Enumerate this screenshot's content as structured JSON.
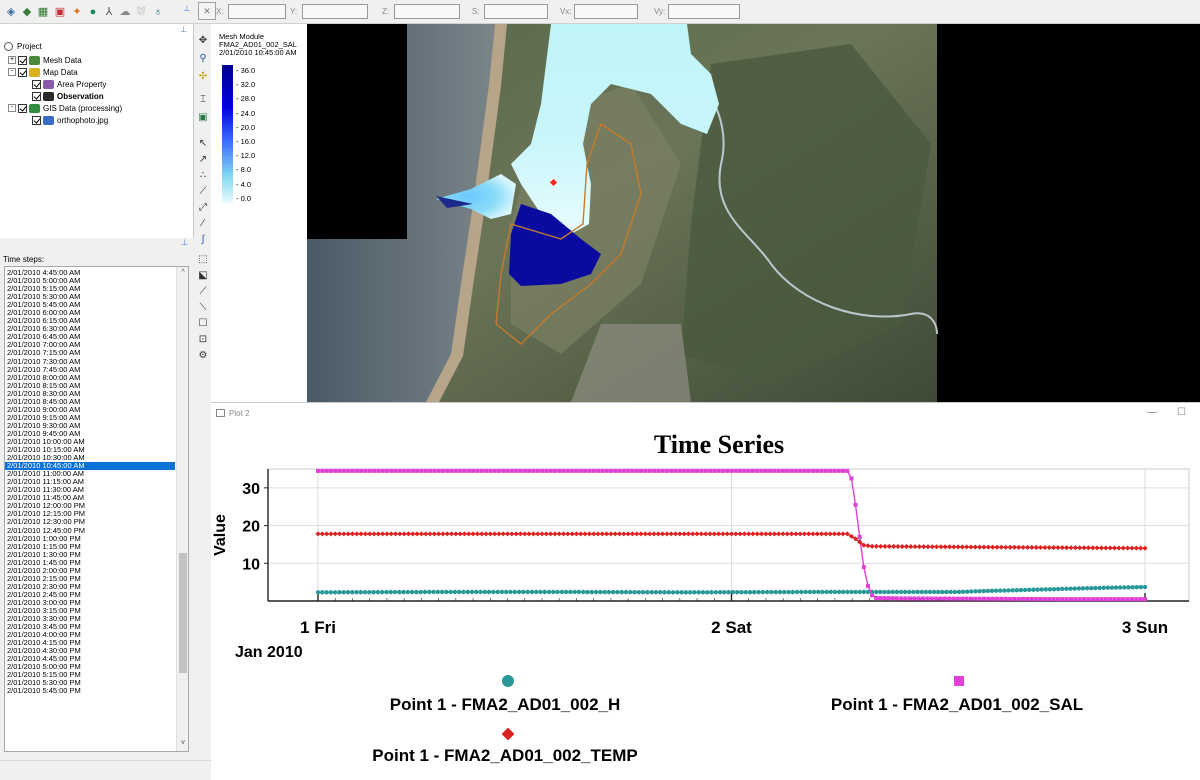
{
  "toolbar": {
    "tools": [
      "mesh-icon",
      "map-icon",
      "grid-icon",
      "raster-icon",
      "scatter-icon",
      "globe-icon",
      "network-icon",
      "cloud-icon",
      "cloud-dotted-icon",
      "gauge-icon"
    ],
    "coords": [
      {
        "label": "X:",
        "value": ""
      },
      {
        "label": "Y:",
        "value": ""
      },
      {
        "label": "Z:",
        "value": ""
      },
      {
        "label": "S:",
        "value": ""
      },
      {
        "label": "Vx:",
        "value": ""
      },
      {
        "label": "Vy:",
        "value": ""
      }
    ]
  },
  "project_tree": {
    "root": "Project",
    "items": [
      {
        "label": "Mesh Data",
        "bold": false,
        "level": 1,
        "expand": "+",
        "color": "#4a8a3a"
      },
      {
        "label": "Map Data",
        "bold": false,
        "level": 1,
        "expand": "-",
        "color": "#d8b020"
      },
      {
        "label": "Area Property",
        "bold": false,
        "level": 2,
        "expand": "",
        "color": "#8a5aa8"
      },
      {
        "label": "Observation",
        "bold": true,
        "level": 2,
        "expand": "",
        "color": "#2a2a2a"
      },
      {
        "label": "GIS Data (processing)",
        "bold": false,
        "level": 1,
        "expand": "-",
        "color": "#2f8f3f"
      },
      {
        "label": "orthophoto.jpg",
        "bold": false,
        "level": 2,
        "expand": "",
        "color": "#3a6ac8"
      }
    ]
  },
  "timesteps": {
    "label": "Time steps:",
    "selected": "2/01/2010 10:45:00 AM",
    "items": [
      "2/01/2010 4:45:00 AM",
      "2/01/2010 5:00:00 AM",
      "2/01/2010 5:15:00 AM",
      "2/01/2010 5:30:00 AM",
      "2/01/2010 5:45:00 AM",
      "2/01/2010 6:00:00 AM",
      "2/01/2010 6:15:00 AM",
      "2/01/2010 6:30:00 AM",
      "2/01/2010 6:45:00 AM",
      "2/01/2010 7:00:00 AM",
      "2/01/2010 7:15:00 AM",
      "2/01/2010 7:30:00 AM",
      "2/01/2010 7:45:00 AM",
      "2/01/2010 8:00:00 AM",
      "2/01/2010 8:15:00 AM",
      "2/01/2010 8:30:00 AM",
      "2/01/2010 8:45:00 AM",
      "2/01/2010 9:00:00 AM",
      "2/01/2010 9:15:00 AM",
      "2/01/2010 9:30:00 AM",
      "2/01/2010 9:45:00 AM",
      "2/01/2010 10:00:00 AM",
      "2/01/2010 10:15:00 AM",
      "2/01/2010 10:30:00 AM",
      "2/01/2010 10:45:00 AM",
      "2/01/2010 11:00:00 AM",
      "2/01/2010 11:15:00 AM",
      "2/01/2010 11:30:00 AM",
      "2/01/2010 11:45:00 AM",
      "2/01/2010 12:00:00 PM",
      "2/01/2010 12:15:00 PM",
      "2/01/2010 12:30:00 PM",
      "2/01/2010 12:45:00 PM",
      "2/01/2010 1:00:00 PM",
      "2/01/2010 1:15:00 PM",
      "2/01/2010 1:30:00 PM",
      "2/01/2010 1:45:00 PM",
      "2/01/2010 2:00:00 PM",
      "2/01/2010 2:15:00 PM",
      "2/01/2010 2:30:00 PM",
      "2/01/2010 2:45:00 PM",
      "2/01/2010 3:00:00 PM",
      "2/01/2010 3:15:00 PM",
      "2/01/2010 3:30:00 PM",
      "2/01/2010 3:45:00 PM",
      "2/01/2010 4:00:00 PM",
      "2/01/2010 4:15:00 PM",
      "2/01/2010 4:30:00 PM",
      "2/01/2010 4:45:00 PM",
      "2/01/2010 5:00:00 PM",
      "2/01/2010 5:15:00 PM",
      "2/01/2010 5:30:00 PM",
      "2/01/2010 5:45:00 PM"
    ]
  },
  "map": {
    "legend_title_1": "Mesh Module",
    "legend_title_2": "FMA2_AD01_002_SAL",
    "legend_title_3": "2/01/2010 10:45:00 AM",
    "legend_ticks": [
      "36.0",
      "32.0",
      "28.0",
      "24.0",
      "20.0",
      "16.0",
      "12.0",
      "8.0",
      "4.0",
      "0.0"
    ]
  },
  "plot_window": {
    "title": "Plot 2",
    "min_glyph": "—",
    "max_glyph": "☐"
  },
  "chart_data": {
    "type": "line",
    "title": "Time Series",
    "ylabel": "Value",
    "xlabel": "",
    "x_ticks": [
      "1 Fri",
      "2 Sat",
      "3 Sun"
    ],
    "x_sublabel": "Jan 2010",
    "x_range_days": [
      1,
      3
    ],
    "y_ticks": [
      10,
      20,
      30
    ],
    "ylim": [
      0,
      35
    ],
    "grid": true,
    "legend_placement": "bottom",
    "series": [
      {
        "name": "Point 1 - FMA2_AD01_002_H",
        "color": "#2a9898",
        "marker": "circle",
        "points": [
          [
            1.0,
            2.3
          ],
          [
            1.3,
            2.4
          ],
          [
            1.6,
            2.4
          ],
          [
            1.9,
            2.3
          ],
          [
            2.2,
            2.4
          ],
          [
            2.3,
            2.4
          ],
          [
            2.4,
            2.4
          ],
          [
            2.5,
            2.4
          ],
          [
            2.55,
            2.4
          ],
          [
            2.6,
            2.6
          ],
          [
            2.7,
            2.9
          ],
          [
            2.8,
            3.2
          ],
          [
            2.9,
            3.5
          ],
          [
            3.0,
            3.7
          ]
        ]
      },
      {
        "name": "Point 1 - FMA2_AD01_002_SAL",
        "color": "#e040d8",
        "marker": "square",
        "points": [
          [
            1.0,
            34.5
          ],
          [
            1.5,
            34.5
          ],
          [
            2.0,
            34.5
          ],
          [
            2.28,
            34.5
          ],
          [
            2.29,
            32.5
          ],
          [
            2.3,
            25.5
          ],
          [
            2.31,
            17
          ],
          [
            2.32,
            9
          ],
          [
            2.33,
            4
          ],
          [
            2.34,
            1.5
          ],
          [
            2.35,
            0.8
          ],
          [
            2.4,
            0.7
          ],
          [
            2.6,
            0.6
          ],
          [
            2.8,
            0.5
          ],
          [
            3.0,
            0.5
          ]
        ]
      },
      {
        "name": "Point 1 - FMA2_AD01_002_TEMP",
        "color": "#dd2020",
        "marker": "diamond",
        "points": [
          [
            1.0,
            17.8
          ],
          [
            1.5,
            17.8
          ],
          [
            2.0,
            17.8
          ],
          [
            2.28,
            17.8
          ],
          [
            2.3,
            16.5
          ],
          [
            2.32,
            14.8
          ],
          [
            2.34,
            14.5
          ],
          [
            2.6,
            14.3
          ],
          [
            3.0,
            14.0
          ]
        ]
      }
    ]
  }
}
